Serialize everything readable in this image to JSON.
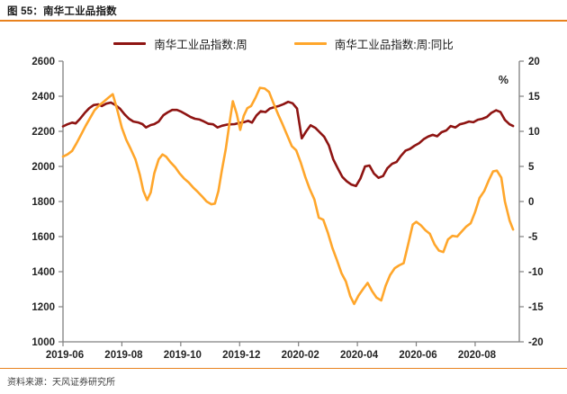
{
  "title": "图 55：南华工业品指数",
  "source": "资料来源：天风证券研究所",
  "colors": {
    "accent_orange_rule": "#E8821E",
    "series_week": "#8E1412",
    "series_yoy": "#FFA62B",
    "axis": "#808080",
    "tick_label": "#242424"
  },
  "legend": [
    {
      "label": "南华工业品指数:周",
      "color": "#8E1412"
    },
    {
      "label": "南华工业品指数:周:同比",
      "color": "#FFA62B"
    }
  ],
  "chart_data": {
    "type": "line",
    "title": "南华工业品指数",
    "x_tick_labels": [
      "2019-06",
      "2019-08",
      "2019-10",
      "2019-12",
      "2020-02",
      "2020-04",
      "2020-06",
      "2020-08"
    ],
    "x_tick_positions_months": [
      0,
      2,
      4,
      6,
      8,
      10,
      12,
      14
    ],
    "x_range_months": [
      0,
      15.5
    ],
    "left_axis": {
      "label": "",
      "min": 1000,
      "max": 2600,
      "ticks": [
        2600,
        2400,
        2200,
        2000,
        1800,
        1600,
        1400,
        1200,
        1000
      ]
    },
    "right_axis": {
      "label": "%",
      "min": -20,
      "max": 20,
      "ticks": [
        20,
        15,
        10,
        5,
        0,
        -5,
        -10,
        -15,
        -20
      ]
    },
    "grid": false,
    "legend_position": "top",
    "series": [
      {
        "name": "南华工业品指数:周",
        "axis": "left",
        "color": "#8E1412",
        "points": [
          [
            0.0,
            2228
          ],
          [
            0.15,
            2240
          ],
          [
            0.31,
            2250
          ],
          [
            0.43,
            2245
          ],
          [
            0.58,
            2272
          ],
          [
            0.74,
            2305
          ],
          [
            0.89,
            2332
          ],
          [
            1.04,
            2350
          ],
          [
            1.2,
            2354
          ],
          [
            1.32,
            2344
          ],
          [
            1.47,
            2358
          ],
          [
            1.63,
            2364
          ],
          [
            1.78,
            2350
          ],
          [
            1.93,
            2330
          ],
          [
            2.09,
            2297
          ],
          [
            2.24,
            2272
          ],
          [
            2.39,
            2256
          ],
          [
            2.55,
            2251
          ],
          [
            2.7,
            2241
          ],
          [
            2.82,
            2222
          ],
          [
            2.98,
            2236
          ],
          [
            3.1,
            2241
          ],
          [
            3.25,
            2256
          ],
          [
            3.41,
            2292
          ],
          [
            3.56,
            2308
          ],
          [
            3.71,
            2322
          ],
          [
            3.87,
            2322
          ],
          [
            4.02,
            2312
          ],
          [
            4.18,
            2297
          ],
          [
            4.33,
            2282
          ],
          [
            4.48,
            2272
          ],
          [
            4.64,
            2267
          ],
          [
            4.79,
            2256
          ],
          [
            4.94,
            2243
          ],
          [
            5.1,
            2240
          ],
          [
            5.25,
            2222
          ],
          [
            5.4,
            2232
          ],
          [
            5.56,
            2238
          ],
          [
            5.71,
            2240
          ],
          [
            5.83,
            2241
          ],
          [
            5.99,
            2248
          ],
          [
            6.14,
            2252
          ],
          [
            6.29,
            2260
          ],
          [
            6.42,
            2250
          ],
          [
            6.57,
            2290
          ],
          [
            6.72,
            2315
          ],
          [
            6.88,
            2310
          ],
          [
            7.03,
            2330
          ],
          [
            7.18,
            2338
          ],
          [
            7.34,
            2345
          ],
          [
            7.49,
            2355
          ],
          [
            7.65,
            2368
          ],
          [
            7.8,
            2360
          ],
          [
            7.95,
            2330
          ],
          [
            8.11,
            2160
          ],
          [
            8.26,
            2200
          ],
          [
            8.41,
            2235
          ],
          [
            8.57,
            2220
          ],
          [
            8.72,
            2195
          ],
          [
            8.87,
            2170
          ],
          [
            9.03,
            2120
          ],
          [
            9.18,
            2040
          ],
          [
            9.33,
            1990
          ],
          [
            9.49,
            1940
          ],
          [
            9.64,
            1915
          ],
          [
            9.79,
            1897
          ],
          [
            9.95,
            1888
          ],
          [
            10.1,
            1930
          ],
          [
            10.26,
            2000
          ],
          [
            10.41,
            2005
          ],
          [
            10.56,
            1960
          ],
          [
            10.72,
            1935
          ],
          [
            10.87,
            1945
          ],
          [
            11.02,
            1990
          ],
          [
            11.18,
            2015
          ],
          [
            11.33,
            2025
          ],
          [
            11.48,
            2060
          ],
          [
            11.64,
            2090
          ],
          [
            11.79,
            2100
          ],
          [
            11.94,
            2118
          ],
          [
            12.1,
            2133
          ],
          [
            12.25,
            2155
          ],
          [
            12.4,
            2170
          ],
          [
            12.56,
            2180
          ],
          [
            12.71,
            2172
          ],
          [
            12.86,
            2195
          ],
          [
            13.02,
            2205
          ],
          [
            13.17,
            2230
          ],
          [
            13.33,
            2222
          ],
          [
            13.48,
            2240
          ],
          [
            13.63,
            2246
          ],
          [
            13.79,
            2256
          ],
          [
            13.94,
            2252
          ],
          [
            14.09,
            2266
          ],
          [
            14.25,
            2272
          ],
          [
            14.4,
            2282
          ],
          [
            14.55,
            2305
          ],
          [
            14.71,
            2320
          ],
          [
            14.86,
            2310
          ],
          [
            15.01,
            2265
          ],
          [
            15.17,
            2240
          ],
          [
            15.29,
            2230
          ]
        ]
      },
      {
        "name": "南华工业品指数:周:同比",
        "axis": "right",
        "color": "#FFA62B",
        "points": [
          [
            0.0,
            6.4
          ],
          [
            0.15,
            6.7
          ],
          [
            0.31,
            7.2
          ],
          [
            0.46,
            8.3
          ],
          [
            0.61,
            9.5
          ],
          [
            0.77,
            10.8
          ],
          [
            0.92,
            11.9
          ],
          [
            1.07,
            13.0
          ],
          [
            1.23,
            13.7
          ],
          [
            1.38,
            14.2
          ],
          [
            1.54,
            14.8
          ],
          [
            1.69,
            15.3
          ],
          [
            1.84,
            13.1
          ],
          [
            2.0,
            10.5
          ],
          [
            2.15,
            8.8
          ],
          [
            2.3,
            7.5
          ],
          [
            2.46,
            6.0
          ],
          [
            2.61,
            3.8
          ],
          [
            2.73,
            1.5
          ],
          [
            2.86,
            0.2
          ],
          [
            2.98,
            1.3
          ],
          [
            3.1,
            4.0
          ],
          [
            3.25,
            6.0
          ],
          [
            3.38,
            6.7
          ],
          [
            3.5,
            6.4
          ],
          [
            3.65,
            5.6
          ],
          [
            3.81,
            4.9
          ],
          [
            3.96,
            4.0
          ],
          [
            4.11,
            3.3
          ],
          [
            4.27,
            2.7
          ],
          [
            4.42,
            2.0
          ],
          [
            4.57,
            1.4
          ],
          [
            4.73,
            0.7
          ],
          [
            4.88,
            0.0
          ],
          [
            5.04,
            -0.4
          ],
          [
            5.16,
            -0.3
          ],
          [
            5.28,
            1.5
          ],
          [
            5.4,
            4.5
          ],
          [
            5.53,
            7.5
          ],
          [
            5.65,
            11.0
          ],
          [
            5.77,
            14.3
          ],
          [
            5.9,
            12.5
          ],
          [
            6.02,
            10.2
          ],
          [
            6.14,
            12.2
          ],
          [
            6.26,
            13.3
          ],
          [
            6.39,
            13.6
          ],
          [
            6.54,
            14.8
          ],
          [
            6.69,
            16.2
          ],
          [
            6.85,
            16.1
          ],
          [
            7.0,
            15.6
          ],
          [
            7.15,
            14.0
          ],
          [
            7.31,
            12.4
          ],
          [
            7.46,
            11.0
          ],
          [
            7.61,
            9.5
          ],
          [
            7.77,
            7.9
          ],
          [
            7.92,
            7.3
          ],
          [
            8.08,
            5.5
          ],
          [
            8.23,
            3.5
          ],
          [
            8.38,
            1.8
          ],
          [
            8.54,
            0.3
          ],
          [
            8.69,
            -2.3
          ],
          [
            8.84,
            -2.6
          ],
          [
            9.0,
            -4.5
          ],
          [
            9.15,
            -6.6
          ],
          [
            9.3,
            -8.3
          ],
          [
            9.46,
            -10.2
          ],
          [
            9.61,
            -11.4
          ],
          [
            9.76,
            -13.5
          ],
          [
            9.89,
            -14.6
          ],
          [
            10.04,
            -13.4
          ],
          [
            10.19,
            -12.5
          ],
          [
            10.35,
            -11.6
          ],
          [
            10.5,
            -12.8
          ],
          [
            10.65,
            -13.7
          ],
          [
            10.81,
            -14.1
          ],
          [
            10.96,
            -12.0
          ],
          [
            11.11,
            -10.5
          ],
          [
            11.27,
            -9.5
          ],
          [
            11.42,
            -9.1
          ],
          [
            11.57,
            -8.8
          ],
          [
            11.73,
            -6.0
          ],
          [
            11.88,
            -3.3
          ],
          [
            12.0,
            -2.9
          ],
          [
            12.16,
            -3.4
          ],
          [
            12.31,
            -4.1
          ],
          [
            12.46,
            -4.6
          ],
          [
            12.62,
            -6.1
          ],
          [
            12.77,
            -7.0
          ],
          [
            12.92,
            -7.2
          ],
          [
            13.08,
            -5.4
          ],
          [
            13.23,
            -4.9
          ],
          [
            13.39,
            -5.0
          ],
          [
            13.54,
            -4.3
          ],
          [
            13.69,
            -3.6
          ],
          [
            13.85,
            -3.1
          ],
          [
            14.0,
            -1.5
          ],
          [
            14.15,
            0.5
          ],
          [
            14.31,
            1.5
          ],
          [
            14.46,
            3.0
          ],
          [
            14.61,
            4.3
          ],
          [
            14.74,
            4.4
          ],
          [
            14.89,
            3.4
          ],
          [
            15.01,
            0.0
          ],
          [
            15.17,
            -2.7
          ],
          [
            15.29,
            -4.0
          ]
        ]
      }
    ]
  }
}
